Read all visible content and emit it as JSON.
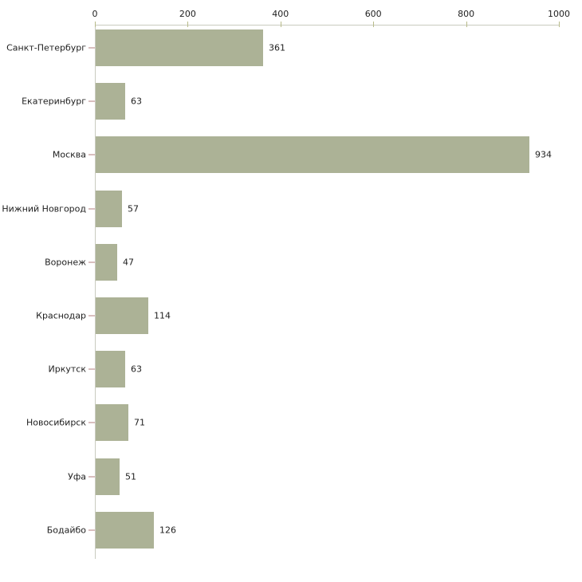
{
  "chart_data": {
    "type": "bar",
    "orientation": "horizontal",
    "title": "",
    "xlabel": "",
    "ylabel": "",
    "categories": [
      "Санкт-Петербург",
      "Екатеринбург",
      "Москва",
      "Нижний Новгород",
      "Воронеж",
      "Краснодар",
      "Иркутск",
      "Новосибирск",
      "Уфа",
      "Бодайбо"
    ],
    "values": [
      361,
      63,
      934,
      57,
      47,
      114,
      63,
      71,
      51,
      126
    ],
    "x_ticks": [
      "0",
      "200",
      "400",
      "600",
      "800",
      "1000"
    ],
    "x_tick_values": [
      0,
      200,
      400,
      600,
      800,
      1000
    ],
    "xlim": [
      0,
      1000
    ],
    "axis_position": "top",
    "grid": false,
    "legend": false,
    "colors": {
      "bar": "#acb296",
      "axis_line": "#c9cbbf",
      "x_tick": "#b8bb8a",
      "category_tick": "#d9bebe",
      "text": "#1e1e1e",
      "background": "#ffffff"
    }
  }
}
